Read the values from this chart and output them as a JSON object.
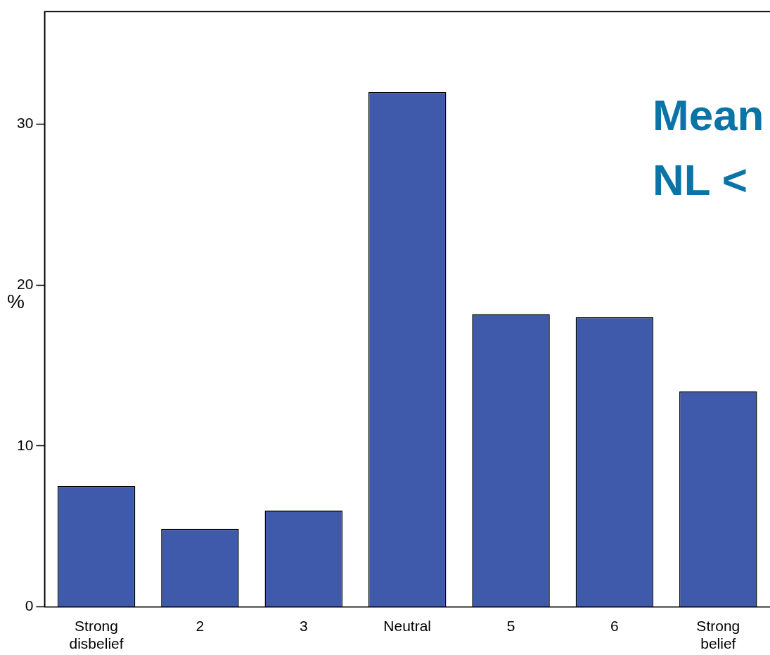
{
  "chart_data": {
    "type": "bar",
    "ylabel": "%",
    "categories": [
      "Strong disbelief",
      "2",
      "3",
      "Neutral",
      "5",
      "6",
      "Strong belief"
    ],
    "values": [
      7.5,
      4.85,
      6.0,
      32.0,
      18.2,
      18.0,
      13.4
    ],
    "color": "#3f5aab",
    "ylim": [
      0,
      37
    ],
    "yticks": [
      0,
      10,
      20,
      30
    ],
    "grid": false,
    "legend": false,
    "annotations": [
      "Mean",
      "NL <"
    ]
  }
}
